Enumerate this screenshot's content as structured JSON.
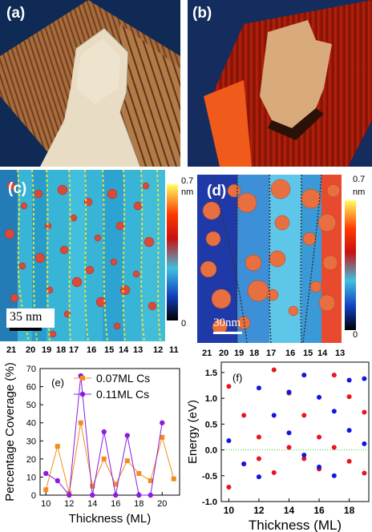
{
  "panels": {
    "a": {
      "label": "(a)"
    },
    "b": {
      "label": "(b)"
    },
    "c": {
      "label": "(c)",
      "colorbar_max": "0.7",
      "colorbar_unit": "nm",
      "colorbar_min": "0",
      "scalebar": "35 nm",
      "thickness_labels": [
        "21",
        "20",
        "19",
        "18",
        "17",
        "16",
        "15",
        "14",
        "13",
        "12",
        "11"
      ]
    },
    "d": {
      "label": "(d)",
      "colorbar_max": "0.7",
      "colorbar_unit": "nm",
      "colorbar_min": "0",
      "scalebar": "30nm",
      "thickness_labels": [
        "21",
        "20",
        "19",
        "18",
        "17",
        "16",
        "15",
        "14",
        "13"
      ]
    }
  },
  "colors": {
    "orange": "#F28C1E",
    "purple": "#8B1CE0",
    "red": "#E8141E",
    "blue": "#1414E0",
    "zero_line": "#33CC33"
  },
  "chart_data": [
    {
      "type": "line",
      "panel": "(e)",
      "xlabel": "Thickness (ML)",
      "ylabel": "Percentage Coverage (%)",
      "xlim": [
        9.5,
        21.5
      ],
      "ylim": [
        0,
        70
      ],
      "xticks": [
        10,
        12,
        14,
        16,
        18,
        20
      ],
      "yticks": [
        0,
        10,
        20,
        30,
        40,
        50,
        60,
        70
      ],
      "legend_placement": "top-right",
      "series": [
        {
          "name": "0.07ML Cs",
          "marker": "square",
          "x": [
            10,
            11,
            12,
            13,
            14,
            15,
            16,
            17,
            18,
            19,
            20,
            21
          ],
          "y": [
            3,
            27,
            1,
            40,
            5,
            20,
            6,
            19,
            12,
            8,
            32,
            9
          ]
        },
        {
          "name": "0.11ML Cs",
          "marker": "circle",
          "x": [
            10,
            11,
            12,
            13,
            14,
            15,
            16,
            17,
            18,
            19,
            20
          ],
          "y": [
            12,
            8,
            0,
            66,
            0,
            35,
            0,
            33,
            0,
            0,
            40
          ]
        }
      ]
    },
    {
      "type": "scatter",
      "panel": "(f)",
      "xlabel": "Thickness (ML)",
      "ylabel": "Energy (eV)",
      "xlim": [
        9.5,
        19.3
      ],
      "ylim": [
        -1.0,
        1.7
      ],
      "xticks": [
        10,
        12,
        14,
        16,
        18
      ],
      "yticks": [
        -1.0,
        -0.5,
        0.0,
        0.5,
        1.0,
        1.5
      ],
      "zero_line": true,
      "series": [
        {
          "color": "red",
          "x": [
            10,
            10,
            11,
            11,
            12,
            12,
            13,
            13,
            14,
            14,
            15,
            15,
            16,
            16,
            17,
            17,
            18,
            18,
            19,
            19
          ],
          "y": [
            1.23,
            -0.72,
            0.67,
            -0.27,
            0.25,
            -0.17,
            1.55,
            -0.44,
            1.1,
            0.05,
            0.67,
            -0.17,
            0.25,
            -0.37,
            1.45,
            0.05,
            1.03,
            -0.22,
            0.73,
            -0.45
          ]
        },
        {
          "color": "blue",
          "x": [
            10,
            11,
            12,
            12,
            13,
            14,
            14,
            15,
            15,
            16,
            16,
            17,
            17,
            18,
            18,
            19,
            19
          ],
          "y": [
            0.18,
            -0.27,
            1.2,
            -0.52,
            0.67,
            1.12,
            0.33,
            1.45,
            -0.1,
            1.02,
            -0.33,
            0.75,
            -0.5,
            1.35,
            0.38,
            1.38,
            0.12
          ]
        }
      ]
    }
  ]
}
